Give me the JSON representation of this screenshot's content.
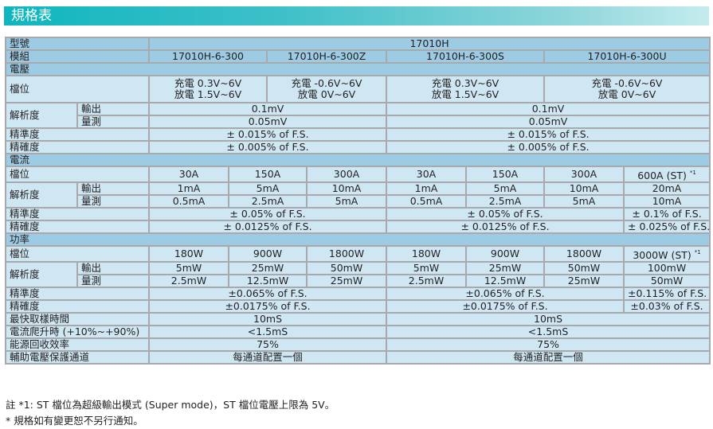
{
  "title": "規格表",
  "table": {
    "model_label": "型號",
    "model": "17010H",
    "module_label": "模組",
    "modules": [
      "17010H-6-300",
      "17010H-6-300Z",
      "17010H-6-300S",
      "17010H-6-300U"
    ],
    "voltage": {
      "section": "電壓",
      "range_label": "檔位",
      "ranges": [
        [
          "充電 0.3V~6V",
          "放電 1.5V~6V"
        ],
        [
          "充電 -0.6V~6V",
          "放電 0V~6V"
        ],
        [
          "充電 0.3V~6V",
          "放電 1.5V~6V"
        ],
        [
          "充電 -0.6V~6V",
          "放電 0V~6V"
        ]
      ],
      "resolution_label": "解析度",
      "output_label": "輸出",
      "measure_label": "量測",
      "output_res": [
        "0.1mV",
        "0.1mV"
      ],
      "measure_res": [
        "0.05mV",
        "0.05mV"
      ],
      "accuracy_label": "精準度",
      "accuracy": [
        "± 0.015% of F.S.",
        "± 0.015% of F.S."
      ],
      "precision_label": "精確度",
      "precision": [
        "± 0.005% of F.S.",
        "± 0.005% of F.S."
      ]
    },
    "current": {
      "section": "電流",
      "range_label": "檔位",
      "ranges": [
        "30A",
        "150A",
        "300A",
        "30A",
        "150A",
        "300A",
        "600A (ST)"
      ],
      "footnote_mark": "*1",
      "resolution_label": "解析度",
      "output_label": "輸出",
      "measure_label": "量測",
      "output_res": [
        "1mA",
        "5mA",
        "10mA",
        "1mA",
        "5mA",
        "10mA",
        "20mA"
      ],
      "measure_res": [
        "0.5mA",
        "2.5mA",
        "5mA",
        "0.5mA",
        "2.5mA",
        "5mA",
        "10mA"
      ],
      "accuracy_label": "精準度",
      "accuracy": [
        "± 0.05% of F.S.",
        "± 0.05% of F.S.",
        "± 0.1% of F.S."
      ],
      "precision_label": "精確度",
      "precision": [
        "± 0.0125% of F.S.",
        "± 0.0125% of F.S.",
        "± 0.025% of F.S."
      ]
    },
    "power": {
      "section": "功率",
      "range_label": "檔位",
      "ranges": [
        "180W",
        "900W",
        "1800W",
        "180W",
        "900W",
        "1800W",
        "3000W (ST)"
      ],
      "footnote_mark": "*1",
      "resolution_label": "解析度",
      "output_label": "輸出",
      "measure_label": "量測",
      "output_res": [
        "5mW",
        "25mW",
        "50mW",
        "5mW",
        "25mW",
        "50mW",
        "100mW"
      ],
      "measure_res": [
        "2.5mW",
        "12.5mW",
        "25mW",
        "2.5mW",
        "12.5mW",
        "25mW",
        "50mW"
      ],
      "accuracy_label": "精準度",
      "accuracy": [
        "±0.065% of F.S.",
        "±0.065% of F.S.",
        "±0.115% of F.S."
      ],
      "precision_label": "精確度",
      "precision": [
        "±0.0175% of F.S.",
        "±0.0175% of F.S.",
        "±0.03% of F.S."
      ]
    },
    "misc": [
      {
        "label": "最快取樣時間",
        "values": [
          "10mS",
          "10mS"
        ]
      },
      {
        "label": "電流爬升時 (+10%~+90%)",
        "values": [
          "<1.5mS",
          "<1.5mS"
        ]
      },
      {
        "label": "能源回收效率",
        "values": [
          "75%",
          "75%"
        ]
      },
      {
        "label": "輔助電壓保護通道",
        "values": [
          "每通道配置一個",
          "每通道配置一個"
        ]
      }
    ]
  },
  "notes": [
    "註 *1: ST 檔位為超級輸出模式 (Super mode)，ST 檔位電壓上限為 5V。",
    "* 規格如有變更恕不另行通知。"
  ]
}
